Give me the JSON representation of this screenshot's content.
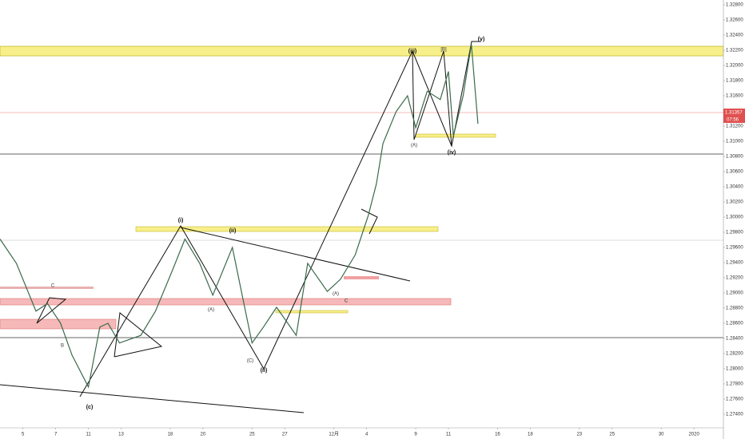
{
  "chart_data": {
    "type": "line",
    "color": "#3a6a4c",
    "x": [
      -1.4,
      -0.4,
      0.8,
      1.5,
      2.3,
      3.0,
      4.0,
      4.7,
      5.2,
      5.9,
      7.2,
      8.1,
      9.1,
      9.9,
      10.8,
      11.6,
      12.8,
      13.3,
      14.0,
      14.7,
      15.5,
      16.7,
      17.4,
      18.6,
      19.4,
      20.3,
      21.1,
      21.6,
      22.0,
      22.8,
      23.5,
      24.0,
      24.7,
      25.5,
      26.0,
      26.3,
      26.9,
      27.4,
      27.8
    ],
    "values": [
      1.2971,
      1.2939,
      1.2876,
      1.2886,
      1.286,
      1.2818,
      1.2776,
      1.2855,
      1.286,
      1.2834,
      1.2844,
      1.2876,
      1.2928,
      1.2971,
      1.2939,
      1.2897,
      1.296,
      1.2907,
      1.2834,
      1.2855,
      1.2881,
      1.2844,
      1.2939,
      1.2902,
      1.2918,
      1.295,
      1.3002,
      1.3044,
      1.3097,
      1.3139,
      1.316,
      1.3118,
      1.3166,
      1.3155,
      1.3192,
      1.3107,
      1.316,
      1.3228,
      1.3123
    ],
    "xlim": [
      -1.4,
      42.8
    ],
    "xticks": [
      {
        "value": 0,
        "label": "5"
      },
      {
        "value": 2,
        "label": "7"
      },
      {
        "value": 4,
        "label": "11"
      },
      {
        "value": 6,
        "label": "13"
      },
      {
        "value": 9,
        "label": "18"
      },
      {
        "value": 11,
        "label": "20"
      },
      {
        "value": 14,
        "label": "25"
      },
      {
        "value": 16,
        "label": "27"
      },
      {
        "value": 19,
        "label": "12月"
      },
      {
        "value": 21,
        "label": "4"
      },
      {
        "value": 24,
        "label": "9"
      },
      {
        "value": 26,
        "label": "11"
      },
      {
        "value": 29,
        "label": "16"
      },
      {
        "value": 31,
        "label": "18"
      },
      {
        "value": 34,
        "label": "23"
      },
      {
        "value": 36,
        "label": "25"
      },
      {
        "value": 39,
        "label": "30"
      },
      {
        "value": 41,
        "label": "2020"
      }
    ],
    "ylim": [
      1.27305,
      1.32863
    ],
    "yticks": [
      {
        "value": 1.274,
        "label": "1.27400"
      },
      {
        "value": 1.276,
        "label": "1.27600"
      },
      {
        "value": 1.278,
        "label": "1.27800"
      },
      {
        "value": 1.28,
        "label": "1.28000"
      },
      {
        "value": 1.282,
        "label": "1.28200"
      },
      {
        "value": 1.284,
        "label": "1.28400"
      },
      {
        "value": 1.286,
        "label": "1.28600"
      },
      {
        "value": 1.288,
        "label": "1.28800"
      },
      {
        "value": 1.29,
        "label": "1.29000"
      },
      {
        "value": 1.292,
        "label": "1.29200"
      },
      {
        "value": 1.294,
        "label": "1.29400"
      },
      {
        "value": 1.296,
        "label": "1.29600"
      },
      {
        "value": 1.298,
        "label": "1.29800"
      },
      {
        "value": 1.3,
        "label": "1.30000"
      },
      {
        "value": 1.302,
        "label": "1.30200"
      },
      {
        "value": 1.304,
        "label": "1.30400"
      },
      {
        "value": 1.306,
        "label": "1.30600"
      },
      {
        "value": 1.308,
        "label": "1.30800"
      },
      {
        "value": 1.31,
        "label": "1.31000"
      },
      {
        "value": 1.312,
        "label": "1.31200"
      },
      {
        "value": 1.314,
        "label": "1.31400"
      },
      {
        "value": 1.316,
        "label": "1.31600"
      },
      {
        "value": 1.318,
        "label": "1.31800"
      },
      {
        "value": 1.32,
        "label": "1.32000"
      },
      {
        "value": 1.322,
        "label": "1.32200"
      },
      {
        "value": 1.324,
        "label": "1.32400"
      },
      {
        "value": 1.326,
        "label": "1.32600"
      },
      {
        "value": 1.328,
        "label": "1.32800"
      }
    ],
    "price_label": "1.31357",
    "countdown": "07:56",
    "annotations": [
      "(i)",
      "(ii)",
      "(iii)",
      "(iv)",
      "(v)",
      "(c)",
      "(A)",
      "(C)",
      "(A)",
      "[B]",
      "(A)",
      "C",
      "B",
      "C",
      "(ii)"
    ]
  }
}
